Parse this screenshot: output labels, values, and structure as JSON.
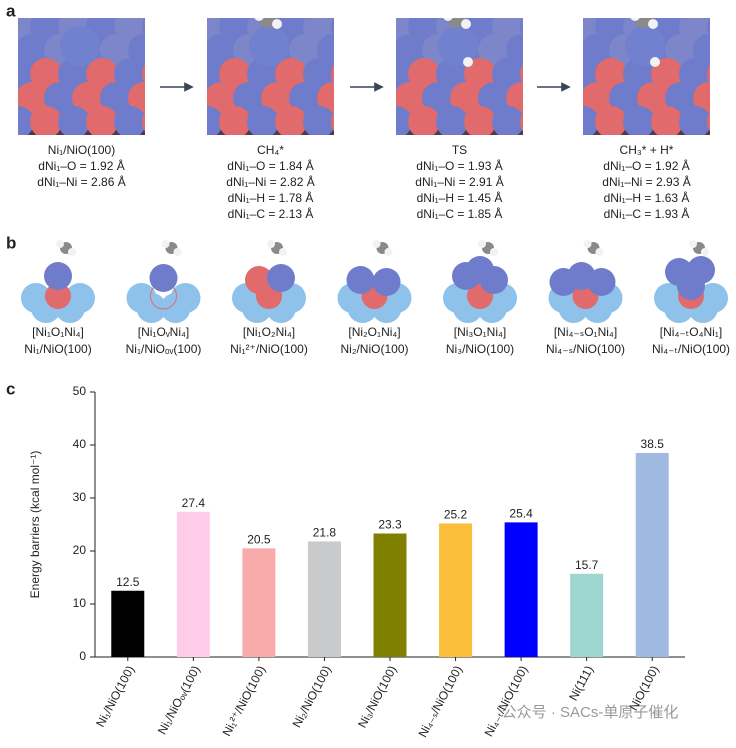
{
  "panel_a": {
    "label": "a",
    "structures": [
      {
        "lines": [
          "Ni₁/NiO(100)",
          "dNi₁–O = 1.92 Å",
          "dNi₁–Ni = 2.86 Å"
        ]
      },
      {
        "lines": [
          "CH₄*",
          "dNi₁–O = 1.84 Å",
          "dNi₁–Ni = 2.82 Å",
          "dNi₁–H = 1.78 Å",
          "dNi₁–C = 2.13 Å"
        ]
      },
      {
        "lines": [
          "TS",
          "dNi₁–O = 1.93 Å",
          "dNi₁–Ni = 2.91 Å",
          "dNi₁–H = 1.45 Å",
          "dNi₁–C = 1.85 Å"
        ]
      },
      {
        "lines": [
          "CH₃* + H*",
          "dNi₁–O = 1.92 Å",
          "dNi₁–Ni = 2.93 Å",
          "dNi₁–H = 1.63 Å",
          "dNi₁–C = 1.93 Å"
        ]
      }
    ]
  },
  "panel_b": {
    "label": "b",
    "structures": [
      {
        "formula": "[Ni₁O₁Ni₄]",
        "name": "Ni₁/NiO(100)"
      },
      {
        "formula": "[Ni₁OᵥNi₄]",
        "name": "Ni₁/NiOₒᵥ(100)"
      },
      {
        "formula": "[Ni₁O₂Ni₄]",
        "name": "Ni₁²⁺/NiO(100)"
      },
      {
        "formula": "[Ni₂O₁Ni₄]",
        "name": "Ni₂/NiO(100)"
      },
      {
        "formula": "[Ni₃O₁Ni₄]",
        "name": "Ni₃/NiO(100)"
      },
      {
        "formula": "[Ni₄₋ₛO₁Ni₄]",
        "name": "Ni₄₋ₛ/NiO(100)"
      },
      {
        "formula": "[Ni₄₋ₜO₄Ni₁]",
        "name": "Ni₄₋ₜ/NiO(100)"
      }
    ]
  },
  "chart_data": {
    "type": "bar",
    "panel_label": "c",
    "y_label": "Energy barriers (kcal mol⁻¹)",
    "categories": [
      "Ni₁/NiO(100)",
      "Ni₁/NiOₒᵥ(100)",
      "Ni₁²⁺/NiO(100)",
      "Ni₂/NiO(100)",
      "Ni₃/NiO(100)",
      "Ni₄₋ₛ/NiO(100)",
      "Ni₄₋ₜ/NiO(100)",
      "Ni(111)",
      "NiO(100)"
    ],
    "values": [
      12.5,
      27.4,
      20.5,
      21.8,
      23.3,
      25.2,
      25.4,
      15.7,
      38.5
    ],
    "colors": [
      "#000000",
      "#ffcde9",
      "#f9aaab",
      "#c9cacc",
      "#808000",
      "#fbbf3b",
      "#0000ff",
      "#a0d6d0",
      "#a0b9e0"
    ],
    "ylim": [
      0,
      50
    ],
    "yticks": [
      0,
      10,
      20,
      30,
      40,
      50
    ]
  },
  "watermark": "公众号 · SACs-单原子催化"
}
